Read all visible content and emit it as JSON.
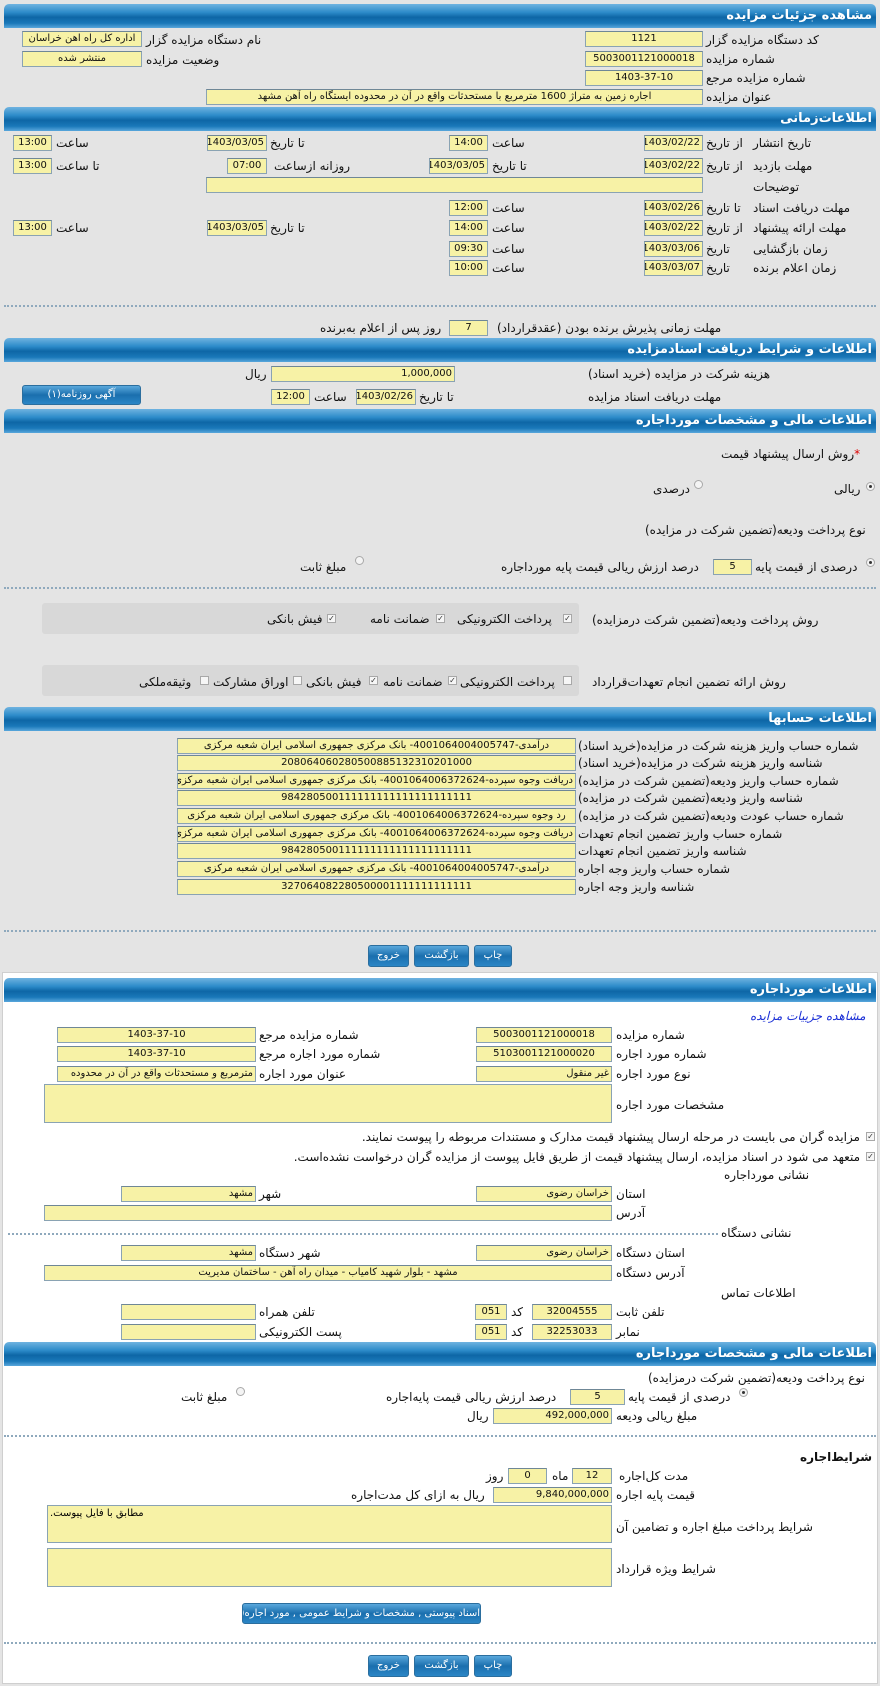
{
  "details": {
    "title": "مشاهده جزئیات مزایده",
    "org_code_label": "کد دستگاه مزایده گزار",
    "org_code": "1121",
    "org_name_label": "نام دستگاه مزایده گزار",
    "org_name": "اداره کل راه اهن خراسان",
    "auction_no_label": "شماره مزایده",
    "auction_no": "5003001121000018",
    "status_label": "وضعیت مزایده",
    "status": "منتشر شده",
    "ref_no_label": "شماره مزایده مرجع",
    "ref_no": "1403-37-10",
    "subject_label": "عنوان مزایده",
    "subject": "اجاره زمین به متراژ 1600 مترمربع با مستحدثات واقع در آن در محدوده ایستگاه راه آهن مشهد"
  },
  "timing": {
    "title": "اطلاعات‌زمانی",
    "publish": {
      "label": "تاریخ انتشار",
      "from_label": "از تاریخ",
      "from": "1403/02/22",
      "time_label": "ساعت",
      "time": "14:00",
      "to_label": "تا تاریخ",
      "to": "1403/03/05",
      "time2_label": "ساعت",
      "time2": "13:00"
    },
    "visit": {
      "label": "مهلت بازدید",
      "from_label": "از تاریخ",
      "from": "1403/02/22",
      "to_label": "تا تاریخ",
      "to": "1403/03/05",
      "daily_label": "روزانه ازساعت",
      "daily_from": "07:00",
      "until_label": "تا ساعت",
      "until": "13:00"
    },
    "notes_label": "توضیحات",
    "notes": "",
    "docs": {
      "label": "مهلت دریافت اسناد",
      "to_label": "تا تاریخ",
      "to": "1403/02/26",
      "time_label": "ساعت",
      "time": "12:00"
    },
    "offer": {
      "label": "مهلت ارائه پیشنهاد",
      "from_label": "از تاریخ",
      "from": "1403/02/22",
      "time_label": "ساعت",
      "time": "14:00",
      "to_label": "تا تاریخ",
      "to": "1403/03/05",
      "time2_label": "ساعت",
      "time2": "13:00"
    },
    "opening": {
      "label": "زمان بازگشایی",
      "date_label": "تاریخ",
      "date": "1403/03/06",
      "time_label": "ساعت",
      "time": "09:30"
    },
    "winner": {
      "label": "زمان اعلام برنده",
      "date_label": "تاریخ",
      "date": "1403/03/07",
      "time_label": "ساعت",
      "time": "10:00"
    },
    "acceptance": {
      "label": "مهلت زمانی پذیرش برنده بودن (عقدقرارداد)",
      "days": "7",
      "suffix": "روز پس از اعلام به‌برنده"
    }
  },
  "docs_section": {
    "title": "اطلاعات و شرایط دریافت اسنادمزایده",
    "fee_label": "هزینه شرکت در مزایده (خرید اسناد)",
    "fee": "1,000,000",
    "currency": "ریال",
    "deadline_label": "مهلت دریافت اسناد مزایده",
    "to_label": "تا تاریخ",
    "to": "1403/02/26",
    "time_label": "ساعت",
    "time": "12:00",
    "newspaper_button": "آگهی روزنامه(۱)"
  },
  "financial": {
    "title": "اطلاعات مالی و مشخصات مورداجاره",
    "required_mark": "*",
    "price_method_label": "روش ارسال پیشنهاد قیمت",
    "rial_option": "ریالی",
    "percent_option": "درصدی",
    "price_method_selected": "ریالی",
    "deposit_type_label": "نوع پرداخت ودیعه(تضمین شرکت در مزایده)",
    "deposit_percent_option": "درصدی از قیمت پایه",
    "deposit_percent": "5",
    "deposit_percent_suffix": "درصد ارزش ریالی قیمت پایه مورداجاره",
    "fixed_option": "مبلغ ثابت",
    "deposit_type_selected": "درصدی از قیمت پایه",
    "deposit_methods_label": "روش پرداخت ودیعه(تضمین شرکت درمزایده)",
    "deposit_methods": [
      {
        "label": "پرداخت الکترونیکی",
        "checked": true
      },
      {
        "label": "ضمانت نامه",
        "checked": true
      },
      {
        "label": "فیش بانکی",
        "checked": true
      }
    ],
    "guarantee_label": "روش ارائه تضمین انجام تعهدات‌قرارداد",
    "guarantee_methods": [
      {
        "label": "پرداخت الکترونیکی",
        "checked": false
      },
      {
        "label": "ضمانت نامه",
        "checked": true
      },
      {
        "label": "فیش بانکی",
        "checked": true
      },
      {
        "label": "اوراق مشارکت",
        "checked": false
      },
      {
        "label": "وثیقه‌ملکی",
        "checked": false
      }
    ]
  },
  "accounts": {
    "title": "اطلاعات حسابها",
    "rows": [
      {
        "label": "شماره حساب واریز هزینه شرکت در مزایده(خرید اسناد)",
        "value": "درآمدی-4001064004005747- بانک مرکزی جمهوری اسلامی ایران شعبه مرکزی"
      },
      {
        "label": "شناسه واریز هزینه شرکت در مزایده(خرید اسناد)",
        "value": "208064060280500885132310201000"
      },
      {
        "label": "شماره حساب واریز ودیعه(تضمین شرکت در مزایده)",
        "value": "دریافت وجوه سپرده-4001064006372624- بانک مرکزی جمهوری اسلامی ایران شعبه مرکزی"
      },
      {
        "label": "شناسه واریز ودیعه(تضمین شرکت در مزایده)",
        "value": "984280500111111111111111111111"
      },
      {
        "label": "شماره حساب عودت ودیعه(تضمین شرکت در مزایده)",
        "value": "رد وجوه سپرده-4001064006372624- بانک مرکزی جمهوری اسلامی ایران شعبه مرکزی"
      },
      {
        "label": "شماره حساب واریز تضمین انجام تعهدات",
        "value": "دریافت وجوه سپرده-4001064006372624- بانک مرکزی جمهوری اسلامی ایران شعبه مرکزی"
      },
      {
        "label": "شناسه واریز تضمین انجام تعهدات",
        "value": "984280500111111111111111111111"
      },
      {
        "label": "شماره حساب واریز وجه اجاره",
        "value": "درآمدی-4001064004005747- بانک مرکزی جمهوری اسلامی ایران شعبه مرکزی"
      },
      {
        "label": "شناسه واریز وجه اجاره",
        "value": "327064082280500001111111111111"
      }
    ]
  },
  "actions": {
    "print": "چاپ",
    "back": "بازگشت",
    "exit": "خروج"
  },
  "lease": {
    "title": "اطلاعات مورداجاره",
    "link": "مشاهده جزییات مزایده",
    "auction_no_label": "شماره مزایده",
    "auction_no": "5003001121000018",
    "auction_ref_label": "شماره مزایده مرجع",
    "auction_ref": "1403-37-10",
    "item_no_label": "شماره مورد اجاره",
    "item_no": "5103001121000020",
    "item_ref_label": "شماره مورد اجاره مرجع",
    "item_ref": "1403-37-10",
    "item_type_label": "نوع مورد اجاره",
    "item_type": "غیر منقول",
    "item_title_label": "عنوان مورد اجاره",
    "item_title": "مترمربع و مستحدثات واقع در آن در محدوده",
    "specs_label": "مشخصات مورد اجاره",
    "specs": "",
    "check1": "مزایده گران می بایست در مرحله ارسال پیشنهاد قیمت مدارک و مستندات مربوطه را پیوست نمایند.",
    "check2": "متعهد می شود در اسناد مزایده، ارسال پیشنهاد قیمت از طریق فایل پیوست از مزایده گران درخواست نشده‌است.",
    "address_title": "نشانی مورداجاره",
    "province_label": "استان",
    "province": "خراسان رضوی",
    "city_label": "شهر",
    "city": "مشهد",
    "address_label": "آدرس",
    "address": "",
    "org_address_title": "نشانی دستگاه",
    "org_province_label": "استان دستگاه",
    "org_province": "خراسان رضوی",
    "org_city_label": "شهر دستگاه",
    "org_city": "مشهد",
    "org_address_label": "آدرس دستگاه",
    "org_address": "مشهد - بلوار شهید کامیاب - میدان راه آهن - ساختمان مدیریت",
    "contact_title": "اطلاعات تماس",
    "phone_label": "تلفن ثابت",
    "phone": "32004555",
    "code_label": "کد",
    "phone_code": "051",
    "mobile_label": "تلفن همراه",
    "mobile": "",
    "fax_label": "نمابر",
    "fax": "32253033",
    "fax_code": "051",
    "email_label": "پست الکترونیکی",
    "email": ""
  },
  "lease_financial": {
    "title": "اطلاعات مالی و مشخصات مورداجاره",
    "deposit_type_label": "نوع پرداخت ودیعه(تضمین شرکت درمزایده)",
    "percent_option": "درصدی از قیمت پایه",
    "percent": "5",
    "percent_suffix": "درصد ارزش ریالی قیمت پایه‌اجاره",
    "fixed_option": "مبلغ ثابت",
    "selected": "درصدی از قیمت پایه",
    "deposit_amount_label": "مبلغ ریالی ودیعه",
    "deposit_amount": "492,000,000",
    "currency": "ریال",
    "terms_title": "شرایط‌اجاره",
    "duration_label": "مدت کل‌اجاره",
    "months": "12",
    "months_label": "ماه",
    "days": "0",
    "days_label": "روز",
    "base_price_label": "قیمت پایه اجاره",
    "base_price": "9,840,000,000",
    "base_price_suffix": "ریال به ازای کل مدت‌اجاره",
    "payment_terms_label": "شرایط پرداخت مبلغ اجاره و تضامین آن",
    "payment_terms": "مطابق با فایل پیوست.",
    "special_terms_label": "شرایط ویژه قرارداد",
    "special_terms": "",
    "attachments_button": "اسناد پیوستی , مشخصات و شرایط عمومی , مورد اجاره(۱)"
  }
}
